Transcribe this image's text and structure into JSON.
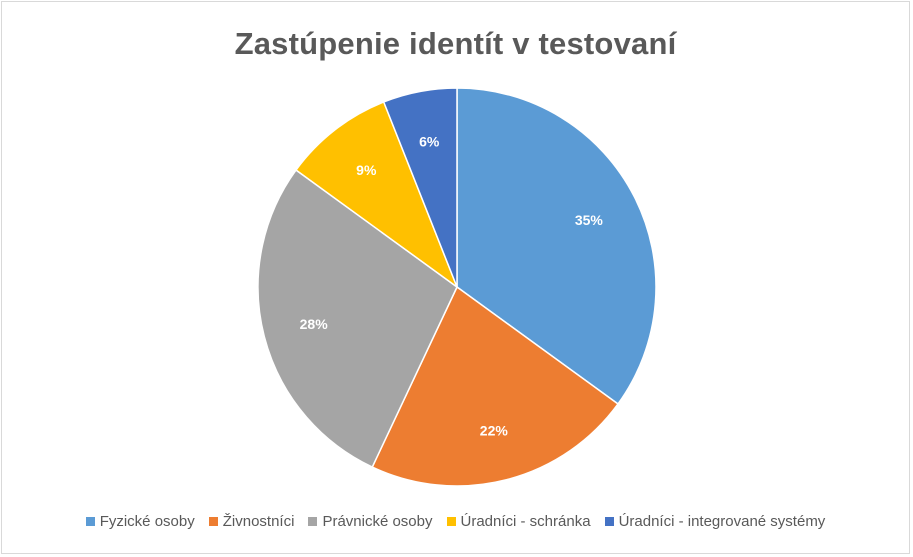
{
  "chart_data": {
    "type": "pie",
    "title": "Zastúpenie identít v testovaní",
    "categories": [
      "Fyzické osoby",
      "Živnostníci",
      "Právnické osoby",
      "Úradníci - schránka",
      "Úradníci - integrované systémy"
    ],
    "values": [
      35,
      22,
      28,
      9,
      6
    ],
    "labels": [
      "35%",
      "22%",
      "28%",
      "9%",
      "6%"
    ],
    "colors": [
      "#5b9bd5",
      "#ed7d31",
      "#a5a5a5",
      "#ffc000",
      "#4472c4"
    ],
    "legend_position": "bottom"
  }
}
